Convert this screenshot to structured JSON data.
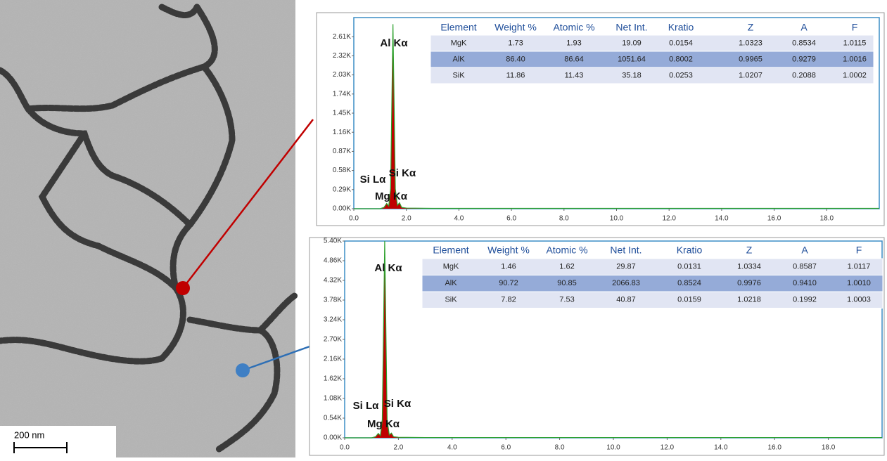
{
  "micrograph": {
    "scale_bar": "200 nm"
  },
  "chart_data": [
    {
      "type": "line",
      "x": [
        0,
        1.0,
        1.15,
        1.25,
        1.33,
        1.4,
        1.49,
        1.58,
        1.66,
        1.74,
        1.82,
        2.0,
        3.0,
        20
      ],
      "series": [
        {
          "color": "#c00000",
          "line_color": "#2ca02c",
          "values": [
            0,
            0,
            20,
            80,
            40,
            300,
            2800,
            300,
            50,
            90,
            20,
            10,
            5,
            5
          ]
        }
      ],
      "xlim": [
        0,
        20
      ],
      "xticks": [
        {
          "value": 0,
          "label": "0.0"
        },
        {
          "value": 2,
          "label": "2.0"
        },
        {
          "value": 4,
          "label": "4.0"
        },
        {
          "value": 6,
          "label": "6.0"
        },
        {
          "value": 8,
          "label": "8.0"
        },
        {
          "value": 10,
          "label": "10.0"
        },
        {
          "value": 12,
          "label": "12.0"
        },
        {
          "value": 14,
          "label": "14.0"
        },
        {
          "value": 16,
          "label": "16.0"
        },
        {
          "value": 18,
          "label": "18.0"
        }
      ],
      "ylim": [
        0,
        2900
      ],
      "yticks": [
        {
          "value": 0,
          "label": "0.00K"
        },
        {
          "value": 290,
          "label": "0.29K"
        },
        {
          "value": 580,
          "label": "0.58K"
        },
        {
          "value": 870,
          "label": "0.87K"
        },
        {
          "value": 1160,
          "label": "1.16K"
        },
        {
          "value": 1450,
          "label": "1.45K"
        },
        {
          "value": 1740,
          "label": "1.74K"
        },
        {
          "value": 2030,
          "label": "2.03K"
        },
        {
          "value": 2320,
          "label": "2.32K"
        },
        {
          "value": 2610,
          "label": "2.61K"
        }
      ],
      "annotations": [
        "Al Kα",
        "Si Lα",
        "Si Kα",
        "Mg Kα"
      ],
      "table": {
        "columns": [
          "Element",
          "Weight %",
          "Atomic %",
          "Net Int.",
          "Kratio",
          "Z",
          "A",
          "F"
        ],
        "rows": [
          [
            "MgK",
            "1.73",
            "1.93",
            "19.09",
            "0.0154",
            "1.0323",
            "0.8534",
            "1.0115"
          ],
          [
            "AlK",
            "86.40",
            "86.64",
            "1051.64",
            "0.8002",
            "0.9965",
            "0.9279",
            "1.0016"
          ],
          [
            "SiK",
            "11.86",
            "11.43",
            "35.18",
            "0.0253",
            "1.0207",
            "0.2088",
            "1.0002"
          ]
        ]
      }
    },
    {
      "type": "line",
      "x": [
        0,
        1.0,
        1.15,
        1.25,
        1.33,
        1.4,
        1.49,
        1.58,
        1.66,
        1.74,
        1.82,
        2.0,
        3.0,
        20
      ],
      "series": [
        {
          "color": "#c00000",
          "line_color": "#2ca02c",
          "values": [
            0,
            0,
            30,
            120,
            60,
            500,
            5400,
            500,
            80,
            130,
            30,
            15,
            8,
            8
          ]
        }
      ],
      "xlim": [
        0,
        20
      ],
      "xticks": [
        {
          "value": 0,
          "label": "0.0"
        },
        {
          "value": 2,
          "label": "2.0"
        },
        {
          "value": 4,
          "label": "4.0"
        },
        {
          "value": 6,
          "label": "6.0"
        },
        {
          "value": 8,
          "label": "8.0"
        },
        {
          "value": 10,
          "label": "10.0"
        },
        {
          "value": 12,
          "label": "12.0"
        },
        {
          "value": 14,
          "label": "14.0"
        },
        {
          "value": 16,
          "label": "16.0"
        },
        {
          "value": 18,
          "label": "18.0"
        }
      ],
      "ylim": [
        0,
        5400
      ],
      "yticks": [
        {
          "value": 0,
          "label": "0.00K"
        },
        {
          "value": 540,
          "label": "0.54K"
        },
        {
          "value": 1080,
          "label": "1.08K"
        },
        {
          "value": 1620,
          "label": "1.62K"
        },
        {
          "value": 2160,
          "label": "2.16K"
        },
        {
          "value": 2700,
          "label": "2.70K"
        },
        {
          "value": 3240,
          "label": "3.24K"
        },
        {
          "value": 3780,
          "label": "3.78K"
        },
        {
          "value": 4320,
          "label": "4.32K"
        },
        {
          "value": 4860,
          "label": "4.86K"
        },
        {
          "value": 5400,
          "label": "5.40K"
        }
      ],
      "annotations": [
        "Al Kα",
        "Si Lα",
        "Si Kα",
        "Mg Kα"
      ],
      "table": {
        "columns": [
          "Element",
          "Weight %",
          "Atomic %",
          "Net Int.",
          "Kratio",
          "Z",
          "A",
          "F"
        ],
        "rows": [
          [
            "MgK",
            "1.46",
            "1.62",
            "29.87",
            "0.0131",
            "1.0334",
            "0.8587",
            "1.0117"
          ],
          [
            "AlK",
            "90.72",
            "90.85",
            "2066.83",
            "0.8524",
            "0.9976",
            "0.9410",
            "1.0010"
          ],
          [
            "SiK",
            "7.82",
            "7.53",
            "40.87",
            "0.0159",
            "1.0218",
            "0.1992",
            "1.0003"
          ]
        ]
      }
    }
  ]
}
